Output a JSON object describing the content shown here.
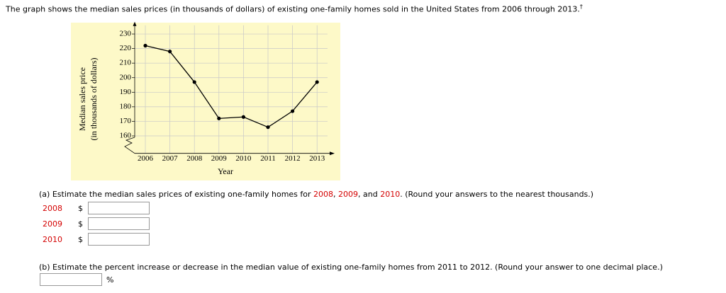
{
  "question": "The graph shows the median sales prices (in thousands of dollars) of existing one-family homes sold in the United States from 2006 through 2013.",
  "dagger": "†",
  "chart_data": {
    "type": "line",
    "x_label": "Year",
    "y_label": [
      "Median sales price",
      "(in thousands of dollars)"
    ],
    "categories": [
      "2006",
      "2007",
      "2008",
      "2009",
      "2010",
      "2011",
      "2012",
      "2013"
    ],
    "values": [
      222,
      218,
      197,
      172,
      173,
      166,
      177,
      197
    ],
    "color": "#000000",
    "background": "#fdf9c8",
    "ylim": [
      148,
      236
    ],
    "yticks": [
      160,
      170,
      180,
      190,
      200,
      210,
      220,
      230
    ],
    "grid": true
  },
  "part_a": {
    "text": [
      "(a) Estimate the median sales prices of existing one-family homes for ",
      "2008",
      ", ",
      "2009",
      ", and ",
      "2010",
      ". (Round your answers to the nearest thousands.)"
    ],
    "rows": [
      {
        "label": "2008",
        "currency": "$"
      },
      {
        "label": "2009",
        "currency": "$"
      },
      {
        "label": "2010",
        "currency": "$"
      }
    ]
  },
  "part_b": {
    "text": "(b) Estimate the percent increase or decrease in the median value of existing one-family homes from 2011 to 2012. (Round your answer to one decimal place.)",
    "unit": "%"
  }
}
